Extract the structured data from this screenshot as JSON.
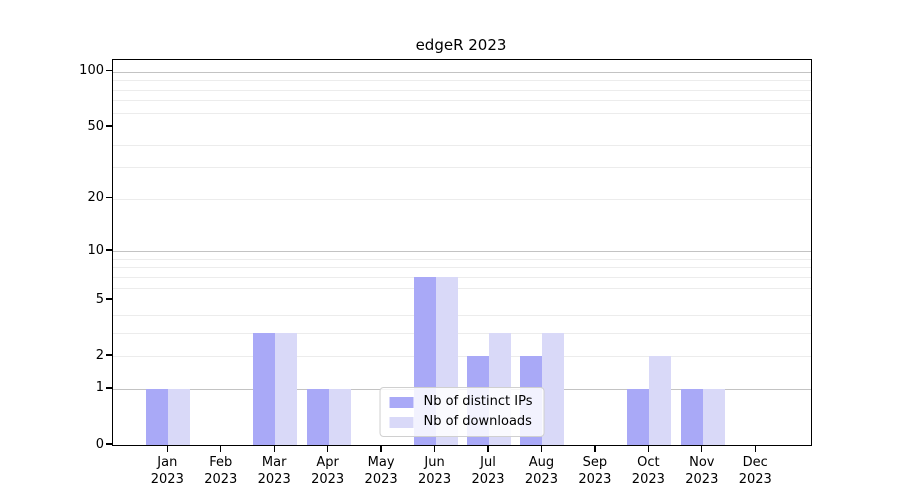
{
  "figure": {
    "background": "#ffffff"
  },
  "chart_data": {
    "type": "bar",
    "title": "edgeR 2023",
    "categories": [
      "Jan 2023",
      "Feb 2023",
      "Mar 2023",
      "Apr 2023",
      "May 2023",
      "Jun 2023",
      "Jul 2023",
      "Aug 2023",
      "Sep 2023",
      "Oct 2023",
      "Nov 2023",
      "Dec 2023"
    ],
    "series": [
      {
        "name": "Nb of distinct IPs",
        "color": "#a9a9f7",
        "values": [
          1,
          0,
          3,
          1,
          0,
          7,
          2,
          2,
          0,
          1,
          1,
          0
        ]
      },
      {
        "name": "Nb of downloads",
        "color": "#d9d9f8",
        "values": [
          1,
          0,
          3,
          1,
          0,
          7,
          3,
          3,
          0,
          2,
          1,
          0
        ]
      }
    ],
    "xlabel": "",
    "ylabel": "",
    "y_scale": "log10(1+x)",
    "y_ticks": [
      0,
      1,
      2,
      5,
      10,
      20,
      50,
      100
    ],
    "y_minor_gridlines": [
      2,
      3,
      4,
      6,
      7,
      8,
      9,
      20,
      30,
      40,
      60,
      70,
      80,
      90
    ],
    "y_major_gridlines": [
      1,
      10,
      100
    ],
    "ylim": [
      0,
      116
    ],
    "grid": "horizontal",
    "legend_position": "lower center inside"
  },
  "colors": {
    "minor_grid": "#ececec",
    "major_grid": "#c3c3c3",
    "axis": "#000000"
  }
}
